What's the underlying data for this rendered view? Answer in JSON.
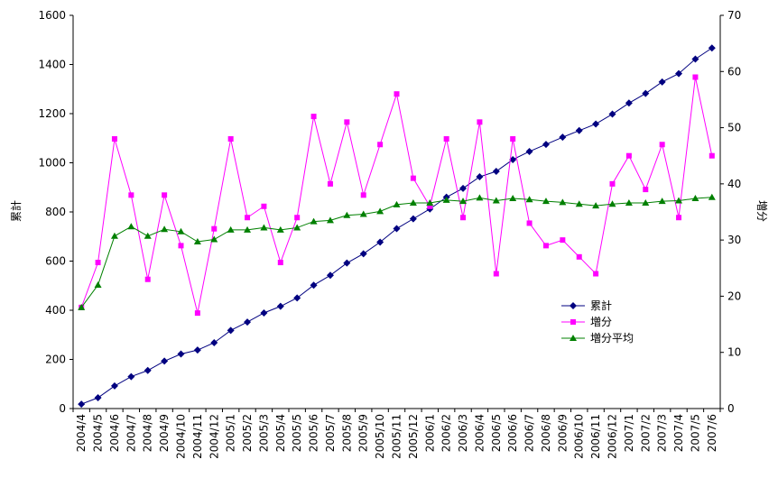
{
  "chart_data": {
    "type": "line",
    "title": "",
    "categories": [
      "2004/4",
      "2004/5",
      "2004/6",
      "2004/7",
      "2004/8",
      "2004/9",
      "2004/10",
      "2004/11",
      "2004/12",
      "2005/1",
      "2005/2",
      "2005/3",
      "2005/4",
      "2005/5",
      "2005/6",
      "2005/7",
      "2005/8",
      "2005/9",
      "2005/10",
      "2005/11",
      "2005/12",
      "2006/1",
      "2006/2",
      "2006/3",
      "2006/4",
      "2006/5",
      "2006/6",
      "2006/7",
      "2006/8",
      "2006/9",
      "2006/10",
      "2006/11",
      "2006/12",
      "2007/1",
      "2007/2",
      "2007/3",
      "2007/4",
      "2007/5",
      "2007/6"
    ],
    "ylabel_left": "累計",
    "ylabel_right": "増分",
    "ylim_left": [
      0,
      1600
    ],
    "ylim_right": [
      0,
      70
    ],
    "left_ticks": [
      0,
      200,
      400,
      600,
      800,
      1000,
      1200,
      1400,
      1600
    ],
    "right_ticks": [
      0,
      10,
      20,
      30,
      40,
      50,
      60,
      70
    ],
    "grid": false,
    "legend_position": "right-middle",
    "series": [
      {
        "name": "累計",
        "axis": "left",
        "color": "#000080",
        "marker": "diamond",
        "values": [
          18,
          44,
          92,
          130,
          155,
          193,
          222,
          238,
          268,
          318,
          352,
          389,
          416,
          450,
          502,
          542,
          592,
          630,
          677,
          732,
          772,
          812,
          860,
          896,
          943,
          965,
          1013,
          1046,
          1075,
          1104,
          1131,
          1158,
          1198,
          1243,
          1282,
          1329,
          1363,
          1422,
          1467
        ]
      },
      {
        "name": "増分",
        "axis": "right",
        "color": "#ff00ff",
        "marker": "square",
        "values": [
          18,
          26,
          48,
          38,
          23,
          38,
          29,
          17,
          32,
          48,
          34,
          36,
          26,
          34,
          52,
          40,
          51,
          38,
          47,
          56,
          41,
          36,
          48,
          34,
          51,
          24,
          48,
          33,
          29,
          30,
          27,
          24,
          40,
          45,
          39,
          47,
          34,
          59,
          45
        ]
      },
      {
        "name": "増分平均",
        "axis": "right",
        "color": "#008000",
        "marker": "triangle",
        "values": [
          18,
          22,
          30.7,
          32.4,
          30.7,
          31.9,
          31.5,
          29.7,
          30.1,
          31.8,
          31.8,
          32.2,
          31.8,
          32.2,
          33.3,
          33.5,
          34.4,
          34.6,
          35.1,
          36.3,
          36.6,
          36.6,
          37.1,
          36.9,
          37.5,
          37,
          37.4,
          37.2,
          36.9,
          36.7,
          36.4,
          36.1,
          36.4,
          36.6,
          36.6,
          36.9,
          37,
          37.4,
          37.6
        ]
      }
    ]
  }
}
